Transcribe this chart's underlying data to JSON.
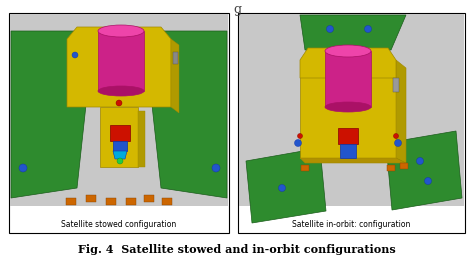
{
  "figure_title": "Fig. 4  Satellite stowed and in-orbit configurations",
  "left_caption": "Satellite stowed configuration",
  "right_caption": "Satellite in-orbit: configuration",
  "bg_color": "#ffffff",
  "border_color": "#000000",
  "title_top_char": "g",
  "fig_width": 4.74,
  "fig_height": 2.59,
  "dpi": 100,
  "green": "#2e8b2e",
  "green_dark": "#1a5c1a",
  "yellow": "#d4b800",
  "yellow_dark": "#a08800",
  "yellow_side": "#b09a00",
  "magenta": "#cc2288",
  "magenta_light": "#ee44aa",
  "magenta_dark": "#aa1166",
  "red": "#cc1100",
  "blue": "#2255cc",
  "blue_dark": "#1133aa",
  "cyan": "#00aacc",
  "orange": "#cc6600",
  "gray_bg": "#c8c8c8",
  "panel_white": "#ffffff",
  "body_gray": "#aaaaaa"
}
